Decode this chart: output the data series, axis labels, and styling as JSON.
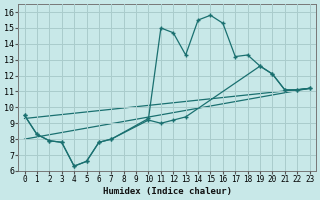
{
  "xlabel": "Humidex (Indice chaleur)",
  "bg_color": "#c8e8e8",
  "grid_color": "#aacccc",
  "line_color": "#1a7070",
  "xlim": [
    -0.5,
    23.5
  ],
  "ylim": [
    6,
    16.5
  ],
  "xticks": [
    0,
    1,
    2,
    3,
    4,
    5,
    6,
    7,
    8,
    9,
    10,
    11,
    12,
    13,
    14,
    15,
    16,
    17,
    18,
    19,
    20,
    21,
    22,
    23
  ],
  "yticks": [
    6,
    7,
    8,
    9,
    10,
    11,
    12,
    13,
    14,
    15,
    16
  ],
  "curve1_x": [
    0,
    1,
    2,
    3,
    4,
    5,
    6,
    7,
    10,
    11,
    12,
    13,
    14,
    15,
    16,
    17,
    18,
    19,
    20,
    21,
    22,
    23
  ],
  "curve1_y": [
    9.5,
    8.3,
    7.9,
    7.8,
    6.3,
    6.6,
    7.8,
    8.0,
    9.3,
    15.0,
    14.7,
    13.3,
    15.5,
    15.8,
    15.3,
    13.2,
    13.3,
    12.6,
    12.1,
    11.1,
    11.1,
    11.2
  ],
  "curve2_x": [
    0,
    1,
    2,
    3,
    4,
    5,
    6,
    7,
    10,
    11,
    12,
    13,
    19,
    20,
    21,
    22,
    23
  ],
  "curve2_y": [
    9.5,
    8.3,
    7.9,
    7.8,
    6.3,
    6.6,
    7.8,
    8.0,
    9.2,
    9.0,
    9.2,
    9.4,
    12.6,
    12.1,
    11.1,
    11.1,
    11.2
  ],
  "curve3_x": [
    0,
    23
  ],
  "curve3_y": [
    9.3,
    11.2
  ],
  "curve4_x": [
    0,
    23
  ],
  "curve4_y": [
    8.0,
    11.2
  ]
}
